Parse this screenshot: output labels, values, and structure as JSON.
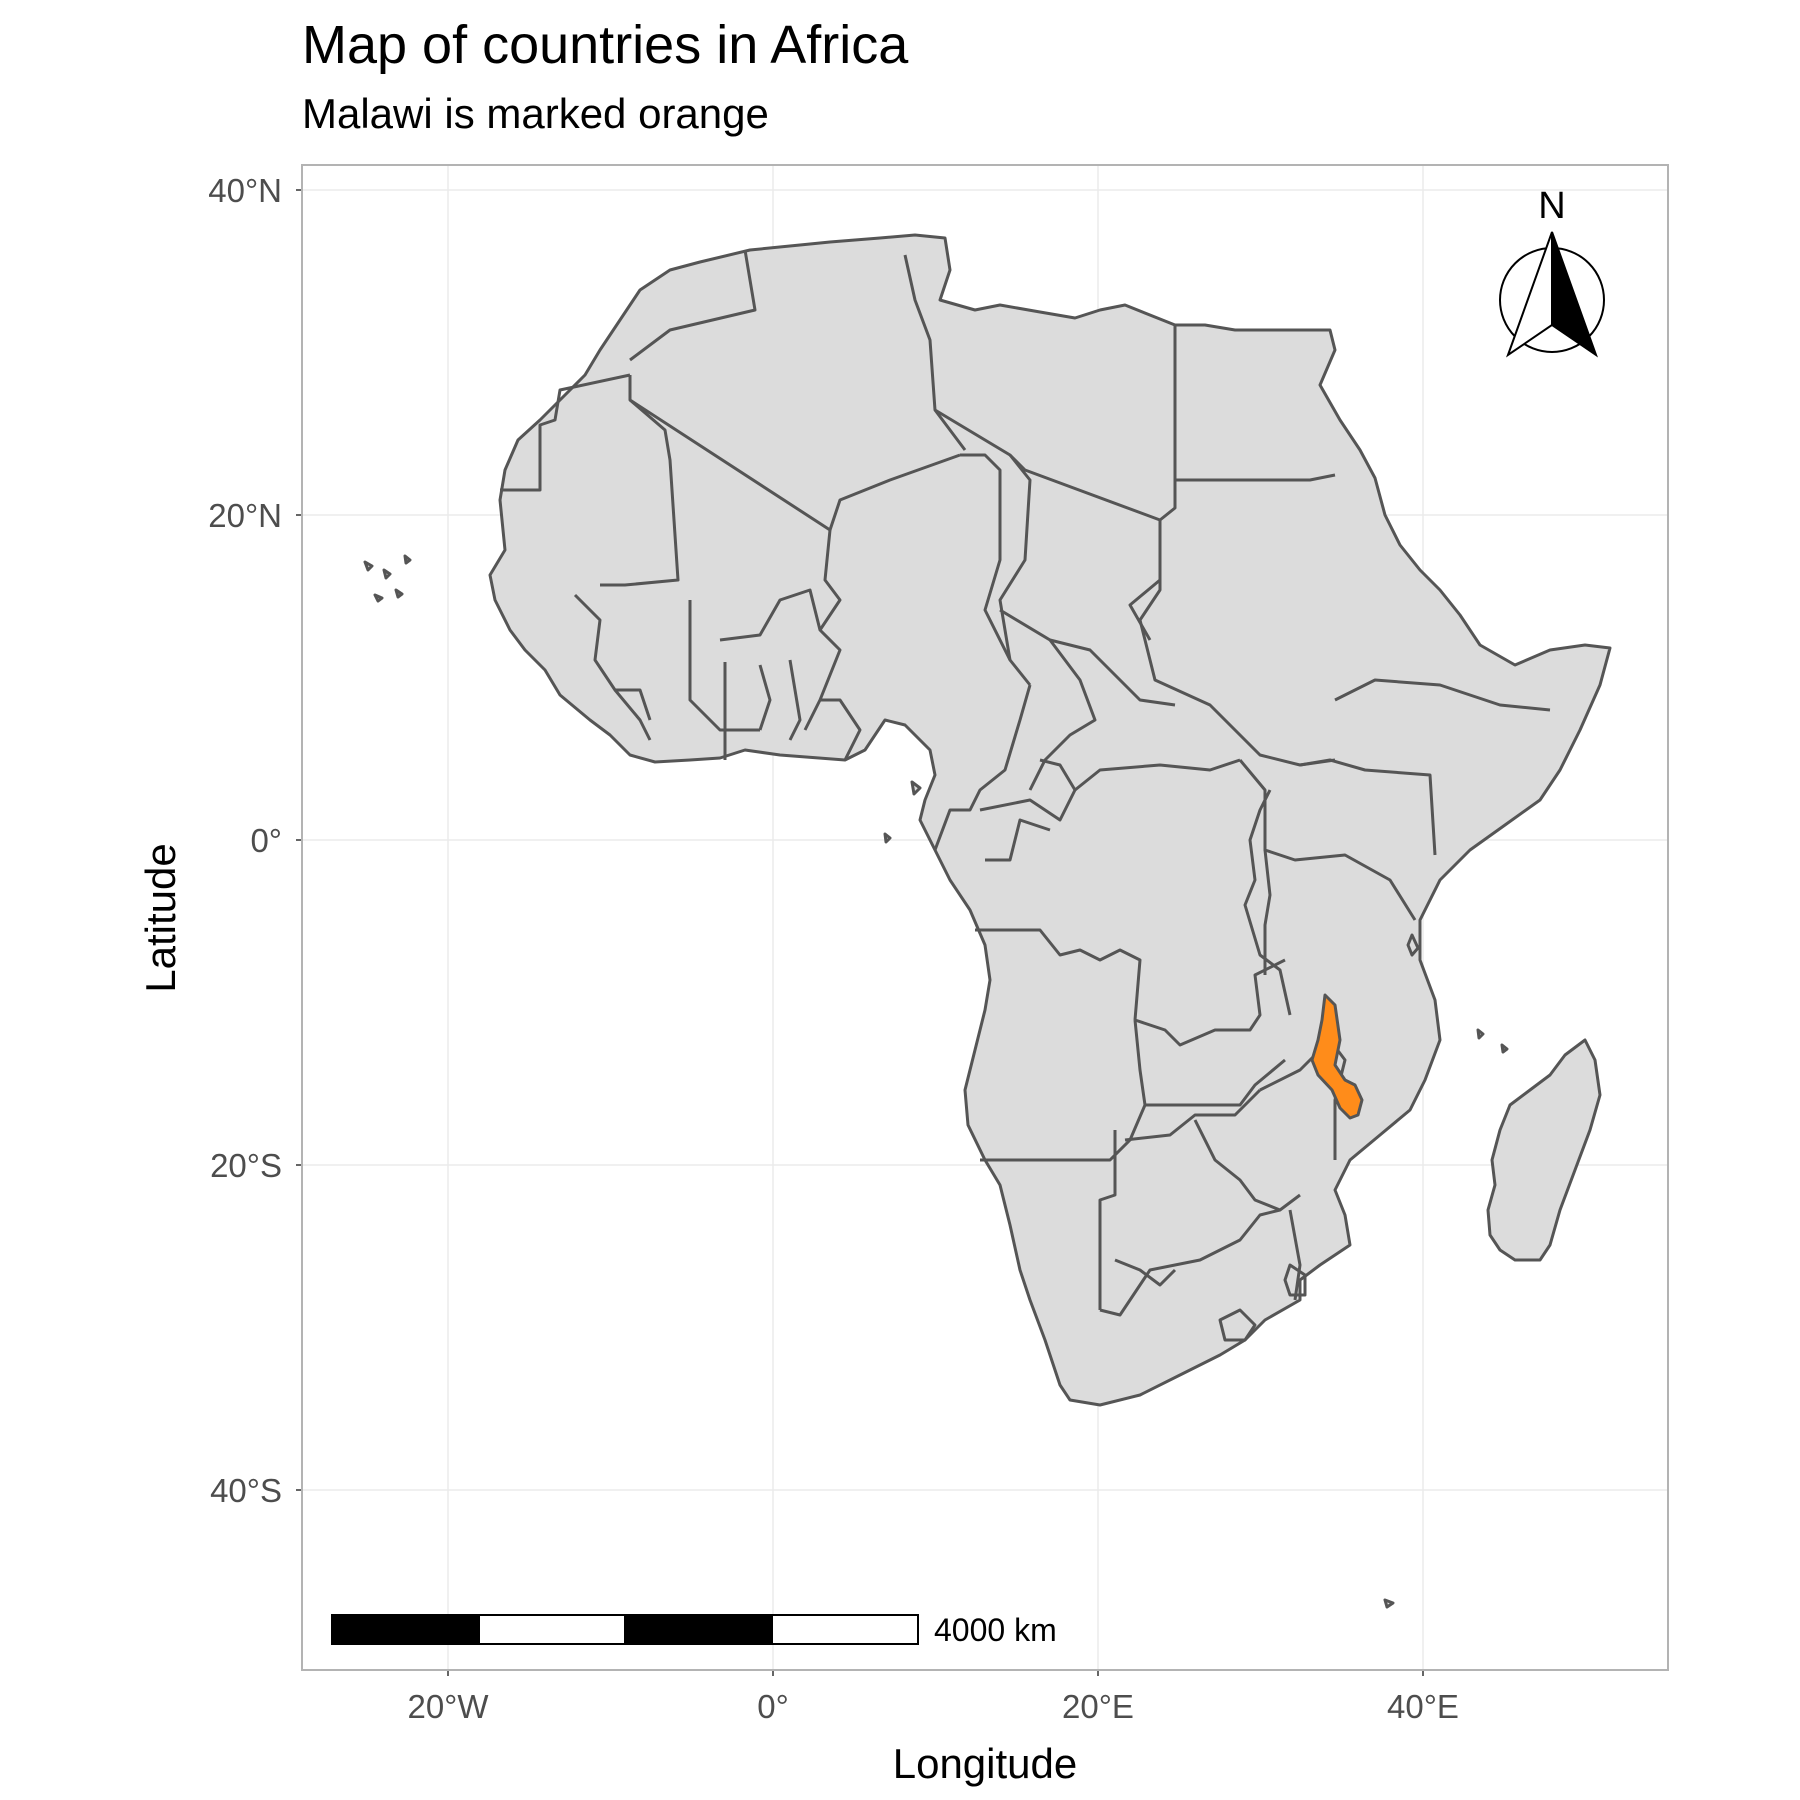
{
  "title": "Map of countries in Africa",
  "subtitle": "Malawi is marked orange",
  "chart_data": {
    "type": "map",
    "region": "Africa",
    "highlighted_country": "Malawi",
    "xlabel": "Longitude",
    "ylabel": "Latitude",
    "xlim": [
      -29,
      55
    ],
    "ylim": [
      -51,
      41.5
    ],
    "x_ticks": [
      {
        "value": -20,
        "label": "20°W"
      },
      {
        "value": 0,
        "label": "0°"
      },
      {
        "value": 20,
        "label": "20°E"
      },
      {
        "value": 40,
        "label": "40°E"
      }
    ],
    "y_ticks": [
      {
        "value": 40,
        "label": "40°N"
      },
      {
        "value": 20,
        "label": "20°N"
      },
      {
        "value": 0,
        "label": "0°"
      },
      {
        "value": -20,
        "label": "20°S"
      },
      {
        "value": -40,
        "label": "40°S"
      }
    ],
    "grid": true
  },
  "north_arrow": {
    "label": "N"
  },
  "scale_bar": {
    "label": "4000 km"
  },
  "colors": {
    "land": "#dcdcdc",
    "border": "#555555",
    "highlight": "#ff8c1a",
    "grid": "#ebebeb",
    "panel_border": "#b3b3b3"
  }
}
